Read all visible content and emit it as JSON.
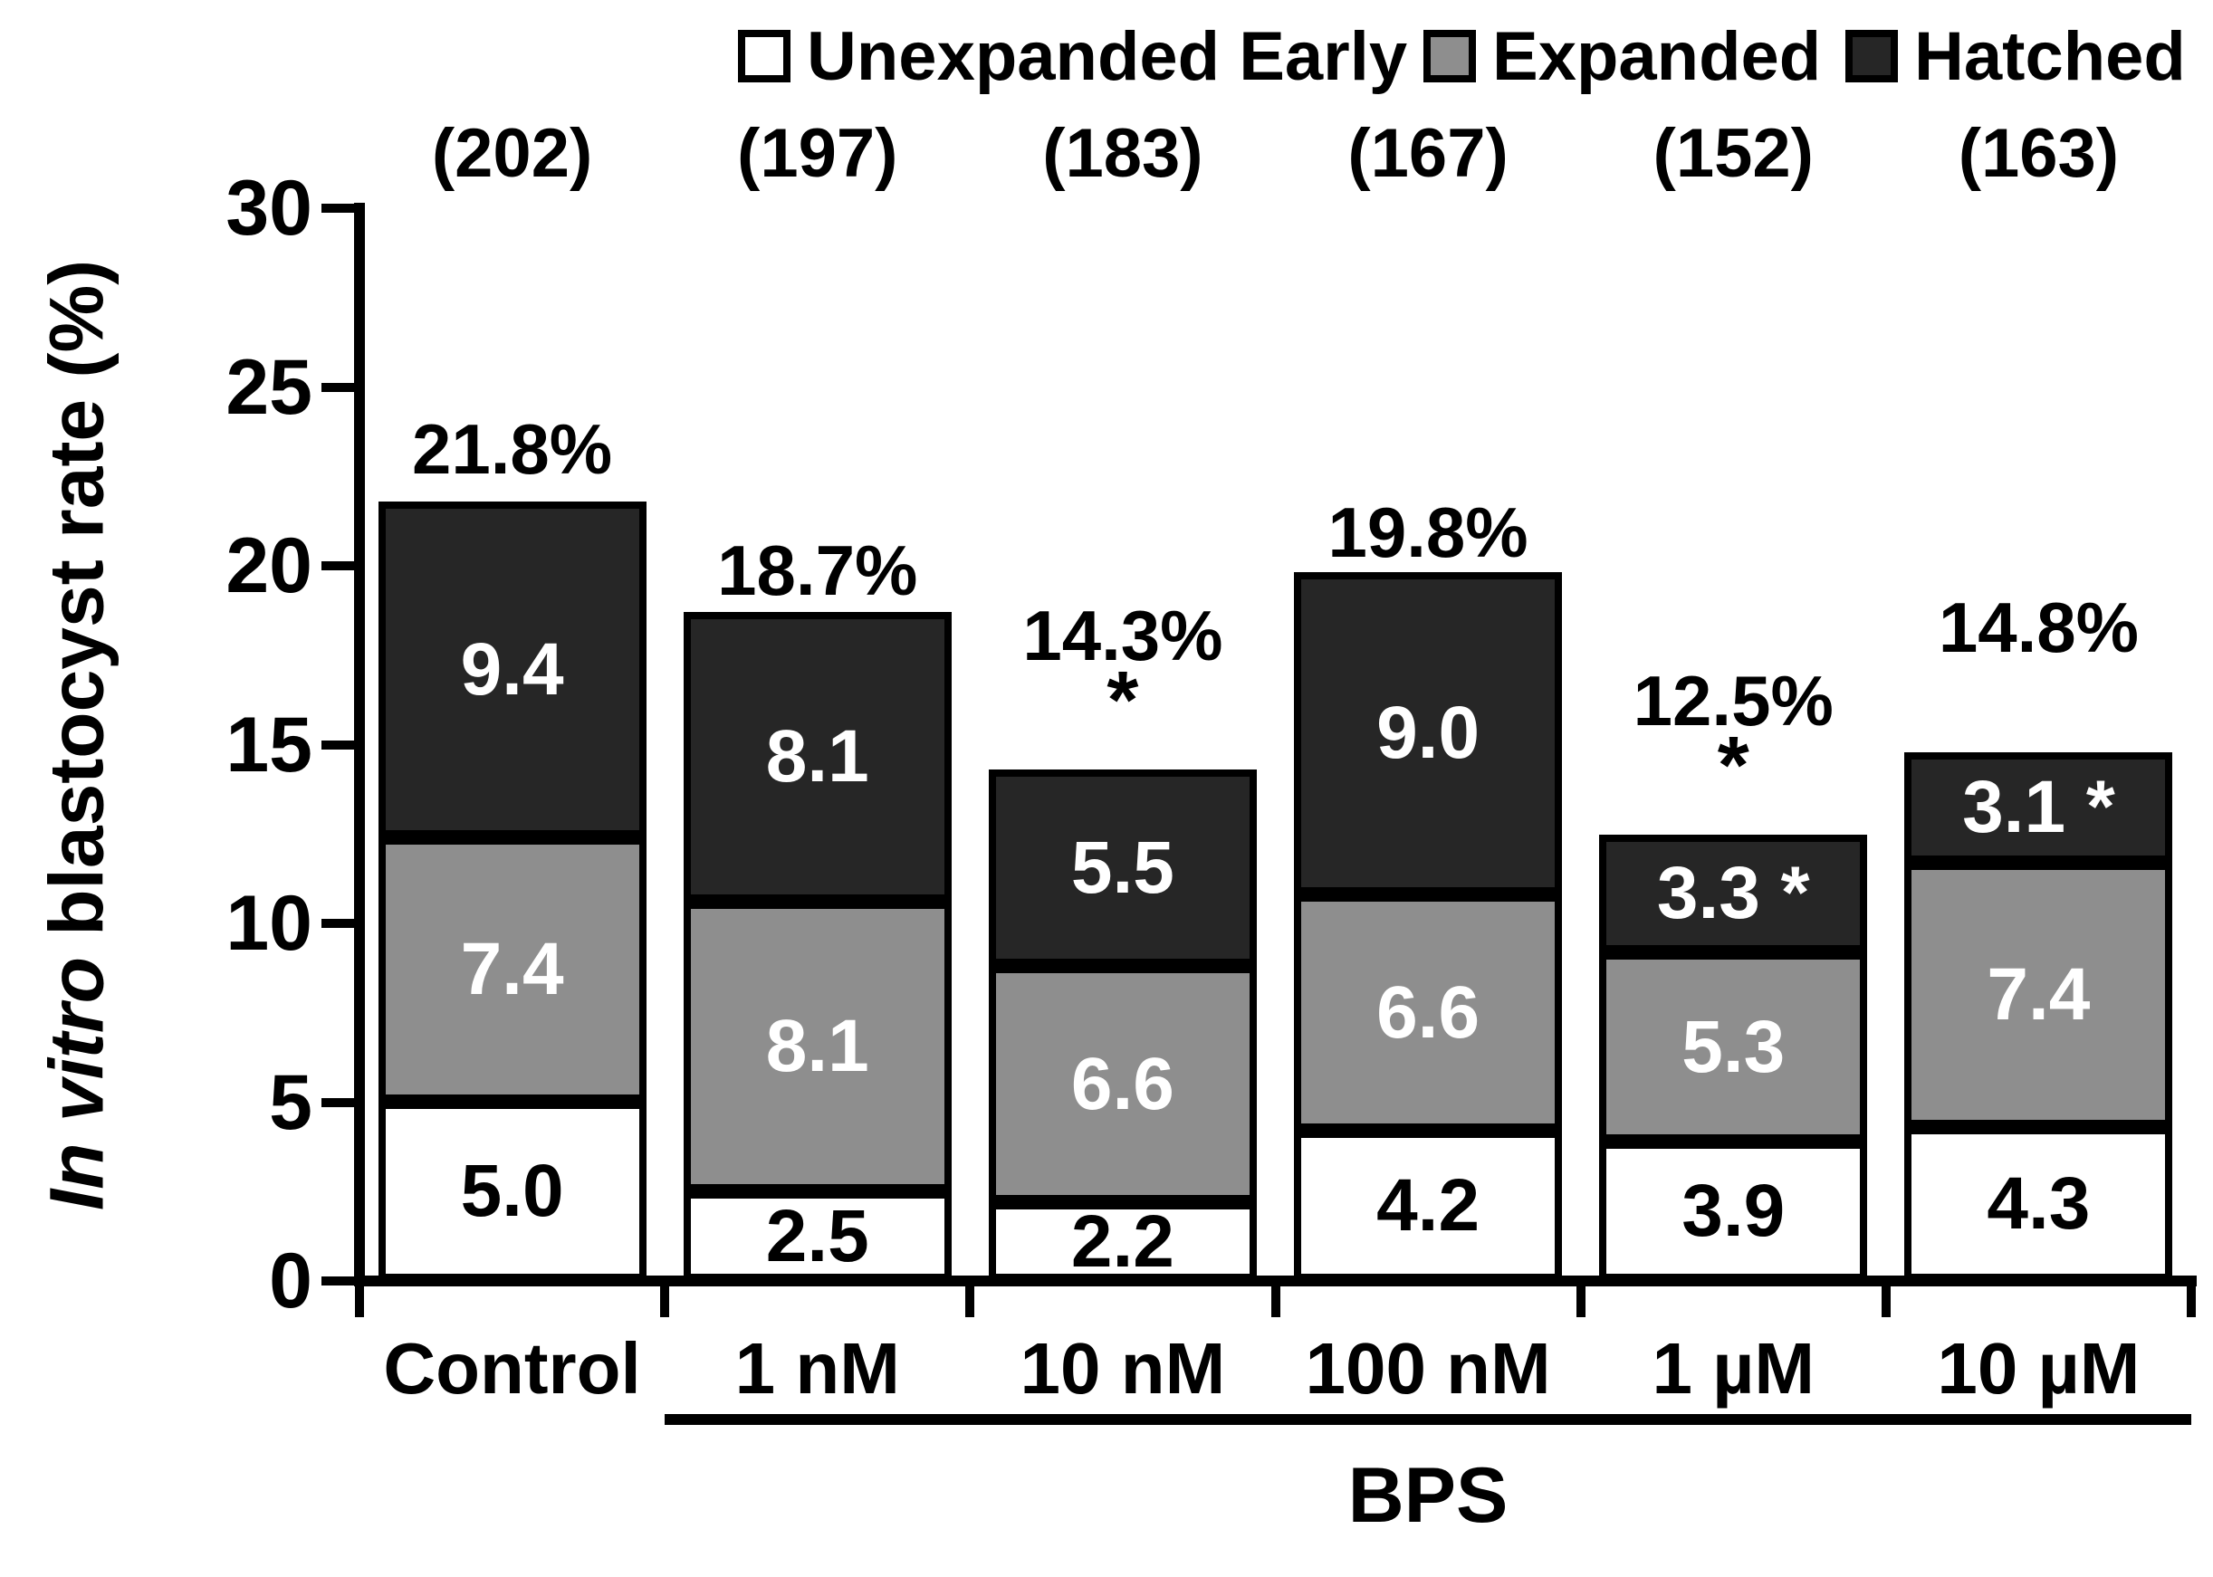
{
  "chart_data": {
    "type": "bar",
    "stacked": true,
    "ylabel_italic": "In vitro",
    "ylabel_rest": " blastocyst rate (%)",
    "ylim": [
      0,
      30
    ],
    "yticks": [
      0,
      5,
      10,
      15,
      20,
      25,
      30
    ],
    "grid": false,
    "legend_position": "top",
    "series_names": [
      "Unexpanded Early",
      "Expanded",
      "Hatched"
    ],
    "colors": {
      "unexpanded": "#ffffff",
      "expanded": "#8e8e8e",
      "hatched": "#262626",
      "border": "#000000",
      "text_on_dark": "#ffffff",
      "text_on_light": "#000000"
    },
    "categories": [
      "Control",
      "1 nM",
      "10 nM",
      "100 nM",
      "1 µM",
      "10 µM"
    ],
    "counts": [
      "(202)",
      "(197)",
      "(183)",
      "(167)",
      "(152)",
      "(163)"
    ],
    "group_label": "BPS",
    "group_span_categories": [
      "1 nM",
      "10 µM"
    ],
    "significance_symbol": "*",
    "bars": [
      {
        "category": "Control",
        "unexpanded": 5.0,
        "expanded": 7.4,
        "hatched": 9.4,
        "labels": {
          "unexpanded": "5.0",
          "expanded": "7.4",
          "hatched": "9.4"
        },
        "total": 21.8,
        "total_label": "21.8%",
        "total_asterisk": false,
        "hatched_asterisk": false
      },
      {
        "category": "1 nM",
        "unexpanded": 2.5,
        "expanded": 8.1,
        "hatched": 8.1,
        "labels": {
          "unexpanded": "2.5",
          "expanded": "8.1",
          "hatched": "8.1"
        },
        "total": 18.7,
        "total_label": "18.7%",
        "total_asterisk": false,
        "hatched_asterisk": false
      },
      {
        "category": "10 nM",
        "unexpanded": 2.2,
        "expanded": 6.6,
        "hatched": 5.5,
        "labels": {
          "unexpanded": "2.2",
          "expanded": "6.6",
          "hatched": "5.5"
        },
        "total": 14.3,
        "total_label": "14.3%",
        "total_asterisk": true,
        "hatched_asterisk": false
      },
      {
        "category": "100 nM",
        "unexpanded": 4.2,
        "expanded": 6.6,
        "hatched": 9.0,
        "labels": {
          "unexpanded": "4.2",
          "expanded": "6.6",
          "hatched": "9.0"
        },
        "total": 19.8,
        "total_label": "19.8%",
        "total_asterisk": false,
        "hatched_asterisk": false
      },
      {
        "category": "1 µM",
        "unexpanded": 3.9,
        "expanded": 5.3,
        "hatched": 3.3,
        "labels": {
          "unexpanded": "3.9",
          "expanded": "5.3",
          "hatched": "3.3"
        },
        "total": 12.5,
        "total_label": "12.5%",
        "total_asterisk": true,
        "hatched_asterisk": true
      },
      {
        "category": "10 µM",
        "unexpanded": 4.3,
        "expanded": 7.4,
        "hatched": 3.1,
        "labels": {
          "unexpanded": "4.3",
          "expanded": "7.4",
          "hatched": "3.1"
        },
        "total": 14.8,
        "total_label": "14.8%",
        "total_asterisk": false,
        "hatched_asterisk": true
      }
    ]
  }
}
